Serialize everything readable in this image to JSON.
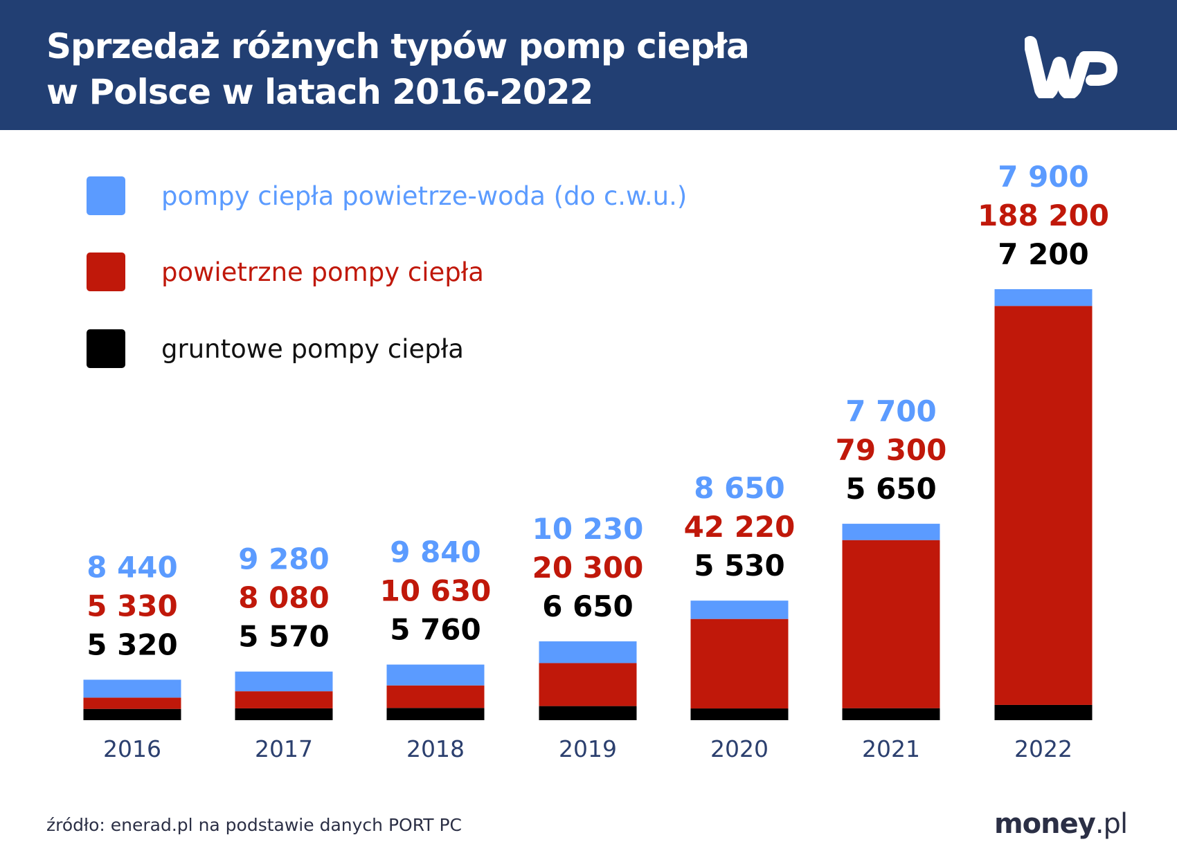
{
  "header": {
    "title_line1": "Sprzedaż różnych typów pomp ciepła",
    "title_line2": "w Polsce w latach 2016-2022",
    "logo": "WP"
  },
  "footer": {
    "source": "źródło: enerad.pl na podstawie danych PORT PC",
    "brand": "money",
    "brand_suffix": ".pl"
  },
  "colors": {
    "header_bg": "#223f73",
    "blue": "#5b9bff",
    "red": "#c0180a",
    "black": "#000000",
    "axis_text": "#2b3f6e"
  },
  "chart_data": {
    "type": "bar",
    "stacked": true,
    "title": "Sprzedaż różnych typów pomp ciepła w Polsce w latach 2016-2022",
    "categories": [
      "2016",
      "2017",
      "2018",
      "2019",
      "2020",
      "2021",
      "2022"
    ],
    "legend_position": "top-left",
    "grid": false,
    "series": [
      {
        "name": "gruntowe pompy ciepła",
        "color": "#000000",
        "values": [
          5320,
          5570,
          5760,
          6650,
          5530,
          5650,
          7200
        ],
        "labels": [
          "5 320",
          "5 570",
          "5 760",
          "6 650",
          "5 530",
          "5 650",
          "7 200"
        ]
      },
      {
        "name": "powietrzne pompy ciepła",
        "color": "#c0180a",
        "values": [
          5330,
          8080,
          10630,
          20300,
          42220,
          79300,
          188200
        ],
        "labels": [
          "5 330",
          "8 080",
          "10 630",
          "20 300",
          "42 220",
          "79 300",
          "188 200"
        ]
      },
      {
        "name": "pompy ciepła powietrze-woda (do c.w.u.)",
        "color": "#5b9bff",
        "values": [
          8440,
          9280,
          9840,
          10230,
          8650,
          7700,
          7900
        ],
        "labels": [
          "8 440",
          "9 280",
          "9 840",
          "10 230",
          "8 650",
          "7 700",
          "7 900"
        ]
      }
    ]
  }
}
